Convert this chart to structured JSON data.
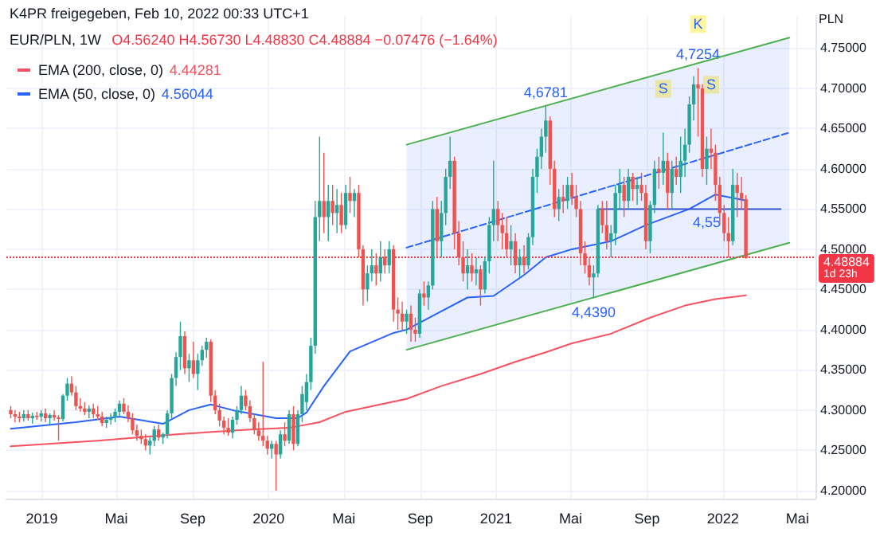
{
  "chart_data": {
    "type": "candlestick",
    "title": "EUR/PLN, 1W",
    "subtitle": "K4PR freigegeben, Feb 10, 2022 00:33 UTC+1",
    "ylabel": "PLN",
    "annotations": [
      "O4.56240 H4.56730 L4.48830 C4.48884 −0.07476 (−1.64%)",
      "4.44281",
      "4.56044",
      "1d 23h",
      {
        "text": "4,6781",
        "x": "2021-03-22",
        "y": 4.6781
      },
      {
        "text": "4,7254",
        "x": "2021-11-22",
        "y": 4.7254
      },
      {
        "text": "4,4390",
        "x": "2021-06-07",
        "y": 4.439
      },
      {
        "text": "4,55",
        "x": "2021-12-06",
        "y": 4.55
      },
      {
        "text": "S",
        "x": "2021-09-27",
        "y": 4.645
      },
      {
        "text": "K",
        "x": "2021-11-22",
        "y": 4.7254
      },
      {
        "text": "S",
        "x": "2021-12-13",
        "y": 4.65
      }
    ],
    "x": [
      "2018-11-12",
      "2018-11-19",
      "2018-11-26",
      "2018-12-03",
      "2018-12-10",
      "2018-12-17",
      "2018-12-24",
      "2018-12-31",
      "2019-01-07",
      "2019-01-14",
      "2019-01-21",
      "2019-01-28",
      "2019-02-04",
      "2019-02-11",
      "2019-02-18",
      "2019-02-25",
      "2019-03-04",
      "2019-03-11",
      "2019-03-18",
      "2019-03-25",
      "2019-04-01",
      "2019-04-08",
      "2019-04-15",
      "2019-04-22",
      "2019-04-29",
      "2019-05-06",
      "2019-05-13",
      "2019-05-20",
      "2019-05-27",
      "2019-06-03",
      "2019-06-10",
      "2019-06-17",
      "2019-06-24",
      "2019-07-01",
      "2019-07-08",
      "2019-07-15",
      "2019-07-22",
      "2019-07-29",
      "2019-08-05",
      "2019-08-12",
      "2019-08-19",
      "2019-08-26",
      "2019-09-02",
      "2019-09-09",
      "2019-09-16",
      "2019-09-23",
      "2019-09-30",
      "2019-10-07",
      "2019-10-14",
      "2019-10-21",
      "2019-10-28",
      "2019-11-04",
      "2019-11-11",
      "2019-11-18",
      "2019-11-25",
      "2019-12-02",
      "2019-12-09",
      "2019-12-16",
      "2019-12-23",
      "2019-12-30",
      "2020-01-06",
      "2020-01-13",
      "2020-01-20",
      "2020-01-27",
      "2020-02-03",
      "2020-02-10",
      "2020-02-17",
      "2020-02-24",
      "2020-03-02",
      "2020-03-09",
      "2020-03-16",
      "2020-03-23",
      "2020-03-30",
      "2020-04-06",
      "2020-04-13",
      "2020-04-20",
      "2020-04-27",
      "2020-05-04",
      "2020-05-11",
      "2020-05-18",
      "2020-05-25",
      "2020-06-01",
      "2020-06-08",
      "2020-06-15",
      "2020-06-22",
      "2020-06-29",
      "2020-07-06",
      "2020-07-13",
      "2020-07-20",
      "2020-07-27",
      "2020-08-03",
      "2020-08-10",
      "2020-08-17",
      "2020-08-24",
      "2020-08-31",
      "2020-09-07",
      "2020-09-14",
      "2020-09-21",
      "2020-09-28",
      "2020-10-05",
      "2020-10-12",
      "2020-10-19",
      "2020-10-26",
      "2020-11-02",
      "2020-11-09",
      "2020-11-16",
      "2020-11-23",
      "2020-11-30",
      "2020-12-07",
      "2020-12-14",
      "2020-12-21",
      "2020-12-28",
      "2021-01-04",
      "2021-01-11",
      "2021-01-18",
      "2021-01-25",
      "2021-02-01",
      "2021-02-08",
      "2021-02-15",
      "2021-02-22",
      "2021-03-01",
      "2021-03-08",
      "2021-03-15",
      "2021-03-22",
      "2021-03-29",
      "2021-04-05",
      "2021-04-12",
      "2021-04-19",
      "2021-04-26",
      "2021-05-03",
      "2021-05-10",
      "2021-05-17",
      "2021-05-24",
      "2021-05-31",
      "2021-06-07",
      "2021-06-14",
      "2021-06-21",
      "2021-06-28",
      "2021-07-05",
      "2021-07-12",
      "2021-07-19",
      "2021-07-26",
      "2021-08-02",
      "2021-08-09",
      "2021-08-16",
      "2021-08-23",
      "2021-08-30",
      "2021-09-06",
      "2021-09-13",
      "2021-09-20",
      "2021-09-27",
      "2021-10-04",
      "2021-10-11",
      "2021-10-18",
      "2021-10-25",
      "2021-11-01",
      "2021-11-08",
      "2021-11-15",
      "2021-11-22",
      "2021-11-29",
      "2021-12-06",
      "2021-12-13",
      "2021-12-20",
      "2021-12-27",
      "2022-01-03",
      "2022-01-10",
      "2022-01-17",
      "2022-01-24",
      "2022-01-31",
      "2022-02-07"
    ],
    "ohlc": [
      [
        4.3,
        4.305,
        4.29,
        4.295
      ],
      [
        4.295,
        4.3,
        4.285,
        4.292
      ],
      [
        4.292,
        4.298,
        4.285,
        4.29
      ],
      [
        4.29,
        4.3,
        4.286,
        4.295
      ],
      [
        4.295,
        4.3,
        4.287,
        4.29
      ],
      [
        4.29,
        4.297,
        4.283,
        4.293
      ],
      [
        4.293,
        4.298,
        4.288,
        4.292
      ],
      [
        4.292,
        4.3,
        4.286,
        4.296
      ],
      [
        4.296,
        4.302,
        4.285,
        4.29
      ],
      [
        4.29,
        4.296,
        4.282,
        4.294
      ],
      [
        4.294,
        4.3,
        4.287,
        4.291
      ],
      [
        4.291,
        4.294,
        4.262,
        4.289
      ],
      [
        4.289,
        4.32,
        4.286,
        4.318
      ],
      [
        4.318,
        4.34,
        4.312,
        4.333
      ],
      [
        4.333,
        4.342,
        4.318,
        4.322
      ],
      [
        4.322,
        4.33,
        4.3,
        4.305
      ],
      [
        4.305,
        4.315,
        4.298,
        4.302
      ],
      [
        4.302,
        4.31,
        4.294,
        4.298
      ],
      [
        4.298,
        4.306,
        4.29,
        4.302
      ],
      [
        4.302,
        4.308,
        4.29,
        4.295
      ],
      [
        4.295,
        4.305,
        4.288,
        4.292
      ],
      [
        4.292,
        4.298,
        4.28,
        4.284
      ],
      [
        4.284,
        4.292,
        4.278,
        4.288
      ],
      [
        4.288,
        4.296,
        4.282,
        4.291
      ],
      [
        4.291,
        4.302,
        4.285,
        4.298
      ],
      [
        4.298,
        4.312,
        4.292,
        4.308
      ],
      [
        4.308,
        4.315,
        4.295,
        4.298
      ],
      [
        4.298,
        4.306,
        4.285,
        4.29
      ],
      [
        4.29,
        4.296,
        4.27,
        4.275
      ],
      [
        4.275,
        4.282,
        4.262,
        4.268
      ],
      [
        4.268,
        4.276,
        4.258,
        4.264
      ],
      [
        4.264,
        4.27,
        4.25,
        4.256
      ],
      [
        4.256,
        4.266,
        4.245,
        4.262
      ],
      [
        4.262,
        4.28,
        4.255,
        4.276
      ],
      [
        4.276,
        4.282,
        4.262,
        4.266
      ],
      [
        4.266,
        4.272,
        4.258,
        4.27
      ],
      [
        4.27,
        4.3,
        4.265,
        4.296
      ],
      [
        4.296,
        4.345,
        4.29,
        4.34
      ],
      [
        4.34,
        4.372,
        4.33,
        4.366
      ],
      [
        4.366,
        4.41,
        4.35,
        4.392
      ],
      [
        4.392,
        4.398,
        4.345,
        4.352
      ],
      [
        4.352,
        4.37,
        4.335,
        4.362
      ],
      [
        4.362,
        4.385,
        4.34,
        4.345
      ],
      [
        4.345,
        4.37,
        4.325,
        4.362
      ],
      [
        4.362,
        4.38,
        4.355,
        4.375
      ],
      [
        4.375,
        4.39,
        4.365,
        4.385
      ],
      [
        4.385,
        4.388,
        4.31,
        4.318
      ],
      [
        4.318,
        4.325,
        4.295,
        4.3
      ],
      [
        4.3,
        4.308,
        4.28,
        4.287
      ],
      [
        4.287,
        4.292,
        4.27,
        4.278
      ],
      [
        4.278,
        4.29,
        4.268,
        4.272
      ],
      [
        4.272,
        4.292,
        4.265,
        4.288
      ],
      [
        4.288,
        4.305,
        4.282,
        4.3
      ],
      [
        4.3,
        4.33,
        4.295,
        4.318
      ],
      [
        4.318,
        4.325,
        4.3,
        4.305
      ],
      [
        4.305,
        4.312,
        4.285,
        4.29
      ],
      [
        4.29,
        4.295,
        4.27,
        4.275
      ],
      [
        4.275,
        4.285,
        4.262,
        4.268
      ],
      [
        4.268,
        4.36,
        4.255,
        4.262
      ],
      [
        4.262,
        4.268,
        4.245,
        4.252
      ],
      [
        4.252,
        4.262,
        4.24,
        4.258
      ],
      [
        4.258,
        4.262,
        4.2,
        4.245
      ],
      [
        4.245,
        4.275,
        4.24,
        4.27
      ],
      [
        4.27,
        4.285,
        4.255,
        4.262
      ],
      [
        4.262,
        4.3,
        4.258,
        4.295
      ],
      [
        4.295,
        4.305,
        4.25,
        4.258
      ],
      [
        4.258,
        4.3,
        4.255,
        4.295
      ],
      [
        4.295,
        4.33,
        4.285,
        4.32
      ],
      [
        4.31,
        4.345,
        4.3,
        4.335
      ],
      [
        4.335,
        4.39,
        4.325,
        4.38
      ],
      [
        4.38,
        4.56,
        4.37,
        4.54
      ],
      [
        4.54,
        4.64,
        4.51,
        4.56
      ],
      [
        4.56,
        4.62,
        4.52,
        4.54
      ],
      [
        4.54,
        4.58,
        4.51,
        4.56
      ],
      [
        4.56,
        4.58,
        4.53,
        4.545
      ],
      [
        4.545,
        4.575,
        4.52,
        4.555
      ],
      [
        4.555,
        4.57,
        4.52,
        4.53
      ],
      [
        4.53,
        4.58,
        4.525,
        4.57
      ],
      [
        4.57,
        4.59,
        4.545,
        4.56
      ],
      [
        4.56,
        4.575,
        4.54,
        4.57
      ],
      [
        4.57,
        4.58,
        4.49,
        4.5
      ],
      [
        4.5,
        4.505,
        4.43,
        4.45
      ],
      [
        4.45,
        4.48,
        4.435,
        4.47
      ],
      [
        4.47,
        4.5,
        4.46,
        4.48
      ],
      [
        4.48,
        4.495,
        4.455,
        4.47
      ],
      [
        4.47,
        4.51,
        4.46,
        4.49
      ],
      [
        4.49,
        4.5,
        4.47,
        4.48
      ],
      [
        4.48,
        4.51,
        4.47,
        4.5
      ],
      [
        4.5,
        4.505,
        4.41,
        4.425
      ],
      [
        4.425,
        4.44,
        4.4,
        4.42
      ],
      [
        4.42,
        4.435,
        4.4,
        4.41
      ],
      [
        4.41,
        4.425,
        4.395,
        4.42
      ],
      [
        4.42,
        4.43,
        4.385,
        4.4
      ],
      [
        4.4,
        4.415,
        4.385,
        4.395
      ],
      [
        4.395,
        4.45,
        4.39,
        4.445
      ],
      [
        4.445,
        4.46,
        4.43,
        4.44
      ],
      [
        4.44,
        4.46,
        4.425,
        4.455
      ],
      [
        4.455,
        4.56,
        4.45,
        4.55
      ],
      [
        4.55,
        4.565,
        4.49,
        4.51
      ],
      [
        4.51,
        4.56,
        4.49,
        4.545
      ],
      [
        4.545,
        4.6,
        4.53,
        4.59
      ],
      [
        4.59,
        4.64,
        4.575,
        4.61
      ],
      [
        4.61,
        4.615,
        4.5,
        4.52
      ],
      [
        4.52,
        4.535,
        4.48,
        4.49
      ],
      [
        4.49,
        4.51,
        4.46,
        4.47
      ],
      [
        4.47,
        4.5,
        4.45,
        4.48
      ],
      [
        4.48,
        4.495,
        4.46,
        4.47
      ],
      [
        4.47,
        4.49,
        4.455,
        4.475
      ],
      [
        4.475,
        4.48,
        4.43,
        4.45
      ],
      [
        4.45,
        4.49,
        4.445,
        4.485
      ],
      [
        4.485,
        4.54,
        4.47,
        4.53
      ],
      [
        4.53,
        4.61,
        4.51,
        4.55
      ],
      [
        4.55,
        4.56,
        4.51,
        4.53
      ],
      [
        4.53,
        4.545,
        4.5,
        4.52
      ],
      [
        4.52,
        4.54,
        4.49,
        4.5
      ],
      [
        4.5,
        4.53,
        4.48,
        4.51
      ],
      [
        4.51,
        4.52,
        4.47,
        4.48
      ],
      [
        4.48,
        4.5,
        4.465,
        4.49
      ],
      [
        4.49,
        4.505,
        4.47,
        4.48
      ],
      [
        4.48,
        4.52,
        4.475,
        4.515
      ],
      [
        4.515,
        4.6,
        4.505,
        4.59
      ],
      [
        4.59,
        4.625,
        4.57,
        4.615
      ],
      [
        4.615,
        4.65,
        4.6,
        4.64
      ],
      [
        4.64,
        4.6781,
        4.62,
        4.66
      ],
      [
        4.66,
        4.665,
        4.58,
        4.6
      ],
      [
        4.6,
        4.61,
        4.54,
        4.55
      ],
      [
        4.55,
        4.575,
        4.535,
        4.565
      ],
      [
        4.565,
        4.58,
        4.545,
        4.56
      ],
      [
        4.56,
        4.59,
        4.55,
        4.58
      ],
      [
        4.58,
        4.595,
        4.555,
        4.565
      ],
      [
        4.565,
        4.58,
        4.54,
        4.55
      ],
      [
        4.55,
        4.56,
        4.48,
        4.495
      ],
      [
        4.495,
        4.51,
        4.47,
        4.48
      ],
      [
        4.48,
        4.49,
        4.455,
        4.465
      ],
      [
        4.465,
        4.48,
        4.439,
        4.47
      ],
      [
        4.47,
        4.555,
        4.465,
        4.55
      ],
      [
        4.55,
        4.56,
        4.52,
        4.53
      ],
      [
        4.53,
        4.56,
        4.5,
        4.51
      ],
      [
        4.51,
        4.53,
        4.49,
        4.52
      ],
      [
        4.52,
        4.58,
        4.505,
        4.57
      ],
      [
        4.57,
        4.6,
        4.55,
        4.58
      ],
      [
        4.58,
        4.59,
        4.54,
        4.56
      ],
      [
        4.56,
        4.6,
        4.55,
        4.59
      ],
      [
        4.59,
        4.595,
        4.56,
        4.575
      ],
      [
        4.575,
        4.59,
        4.555,
        4.58
      ],
      [
        4.58,
        4.595,
        4.56,
        4.57
      ],
      [
        4.57,
        4.58,
        4.5,
        4.51
      ],
      [
        4.51,
        4.56,
        4.495,
        4.555
      ],
      [
        4.555,
        4.61,
        4.545,
        4.6
      ],
      [
        4.6,
        4.615,
        4.575,
        4.595
      ],
      [
        4.595,
        4.645,
        4.58,
        4.61
      ],
      [
        4.61,
        4.62,
        4.55,
        4.57
      ],
      [
        4.57,
        4.61,
        4.55,
        4.6
      ],
      [
        4.6,
        4.615,
        4.58,
        4.59
      ],
      [
        4.59,
        4.64,
        4.57,
        4.61
      ],
      [
        4.61,
        4.65,
        4.59,
        4.63
      ],
      [
        4.63,
        4.69,
        4.62,
        4.68
      ],
      [
        4.68,
        4.715,
        4.66,
        4.705
      ],
      [
        4.705,
        4.7254,
        4.64,
        4.7
      ],
      [
        4.7,
        4.705,
        4.59,
        4.6
      ],
      [
        4.6,
        4.64,
        4.58,
        4.625
      ],
      [
        4.625,
        4.65,
        4.6,
        4.62
      ],
      [
        4.62,
        4.63,
        4.56,
        4.58
      ],
      [
        4.58,
        4.59,
        4.53,
        4.545
      ],
      [
        4.545,
        4.555,
        4.51,
        4.52
      ],
      [
        4.52,
        4.54,
        4.49,
        4.51
      ],
      [
        4.51,
        4.6,
        4.505,
        4.58
      ],
      [
        4.58,
        4.595,
        4.54,
        4.57
      ],
      [
        4.57,
        4.59,
        4.55,
        4.5624
      ],
      [
        4.5624,
        4.5673,
        4.4883,
        4.48884
      ]
    ],
    "series": [
      {
        "name": "EMA (200, close, 0)",
        "type": "line",
        "color": "#f7525f",
        "x": [
          "2018-11-12",
          "2019-04-01",
          "2019-08-05",
          "2019-12-02",
          "2020-02-03",
          "2020-03-23",
          "2020-05-04",
          "2020-08-10",
          "2020-10-05",
          "2020-12-07",
          "2021-02-01",
          "2021-03-22",
          "2021-05-03",
          "2021-07-05",
          "2021-09-06",
          "2021-11-01",
          "2021-12-20",
          "2022-02-07"
        ],
        "values": [
          4.255,
          4.262,
          4.27,
          4.276,
          4.278,
          4.285,
          4.298,
          4.314,
          4.33,
          4.345,
          4.36,
          4.372,
          4.383,
          4.395,
          4.415,
          4.43,
          4.438,
          4.44281
        ]
      },
      {
        "name": "EMA (50, close, 0)",
        "type": "line",
        "color": "#2962ff",
        "x": [
          "2018-11-12",
          "2019-02-25",
          "2019-05-06",
          "2019-07-15",
          "2019-08-26",
          "2019-09-30",
          "2019-11-04",
          "2020-01-13",
          "2020-02-17",
          "2020-03-02",
          "2020-03-30",
          "2020-05-11",
          "2020-07-20",
          "2020-08-10",
          "2020-09-28",
          "2020-11-16",
          "2020-12-28",
          "2021-02-15",
          "2021-03-22",
          "2021-05-03",
          "2021-07-05",
          "2021-08-30",
          "2021-11-08",
          "2021-12-20",
          "2022-02-07"
        ],
        "values": [
          4.277,
          4.285,
          4.292,
          4.283,
          4.3,
          4.307,
          4.3,
          4.29,
          4.29,
          4.297,
          4.33,
          4.373,
          4.396,
          4.4,
          4.42,
          4.44,
          4.442,
          4.468,
          4.49,
          4.5,
          4.51,
          4.53,
          4.55,
          4.568,
          4.56044
        ]
      },
      {
        "type": "line",
        "color": "#4caf50",
        "x": [
          "2020-08-10",
          "2022-04-18"
        ],
        "values": [
          4.63,
          4.763
        ]
      },
      {
        "type": "line",
        "color": "#4caf50",
        "x": [
          "2020-08-10",
          "2022-04-18"
        ],
        "values": [
          4.375,
          4.508
        ]
      },
      {
        "type": "line",
        "color": "#2962ff",
        "line_style": "dashed",
        "x": [
          "2020-08-10",
          "2022-04-18"
        ],
        "values": [
          4.502,
          4.645
        ],
        "lower": [
          4.375,
          4.508
        ],
        "upper": [
          4.63,
          4.763
        ]
      },
      {
        "type": "line",
        "color": "#3355cc",
        "x": [
          "2021-06-14",
          "2022-04-04"
        ],
        "values": [
          4.55,
          4.55
        ]
      }
    ],
    "ref_lines": [
      {
        "axis": "y",
        "value": 4.48884,
        "label": "4.48884",
        "color": "#f23645",
        "line_style": "dotted"
      }
    ],
    "xlim": [
      "2018-11-05",
      "2022-05-30"
    ],
    "xticks": [
      {
        "value": "2019-01-01",
        "label": "2019"
      },
      {
        "value": "2019-05-01",
        "label": "Mai"
      },
      {
        "value": "2019-09-01",
        "label": "Sep"
      },
      {
        "value": "2020-01-01",
        "label": "2020"
      },
      {
        "value": "2020-05-01",
        "label": "Mai"
      },
      {
        "value": "2020-09-01",
        "label": "Sep"
      },
      {
        "value": "2021-01-01",
        "label": "2021"
      },
      {
        "value": "2021-05-01",
        "label": "Mai"
      },
      {
        "value": "2021-09-01",
        "label": "Sep"
      },
      {
        "value": "2022-01-01",
        "label": "2022"
      },
      {
        "value": "2022-05-01",
        "label": "Mai"
      }
    ],
    "ylim": [
      4.19,
      4.79
    ],
    "yticks": [
      {
        "value": 4.2,
        "label": "4.20000"
      },
      {
        "value": 4.25,
        "label": "4.25000"
      },
      {
        "value": 4.3,
        "label": "4.30000"
      },
      {
        "value": 4.35,
        "label": "4.35000"
      },
      {
        "value": 4.4,
        "label": "4.40000"
      },
      {
        "value": 4.45,
        "label": "4.45000"
      },
      {
        "value": 4.5,
        "label": "4.50000"
      },
      {
        "value": 4.55,
        "label": "4.55000"
      },
      {
        "value": 4.6,
        "label": "4.60000"
      },
      {
        "value": 4.65,
        "label": "4.65000"
      },
      {
        "value": 4.7,
        "label": "4.70000"
      },
      {
        "value": 4.75,
        "label": "4.75000"
      }
    ],
    "grid": true,
    "legend": "top left",
    "marker": "none"
  }
}
